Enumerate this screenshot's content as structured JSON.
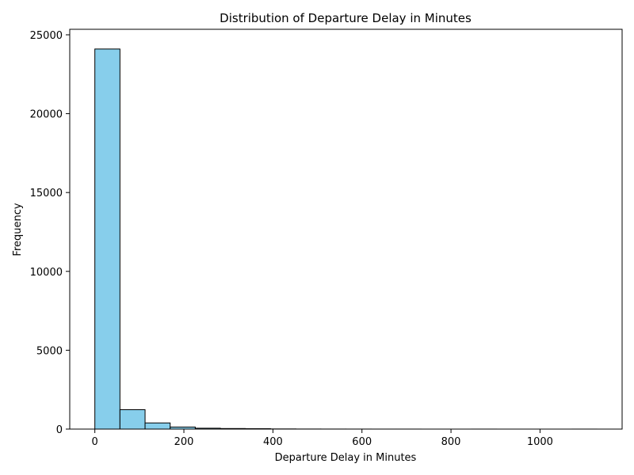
{
  "chart_data": {
    "type": "bar",
    "title": "Distribution of Departure Delay in Minutes",
    "xlabel": "Departure Delay in Minutes",
    "ylabel": "Frequency",
    "xlim": [
      -56.4,
      1184.4
    ],
    "ylim": [
      0,
      25350
    ],
    "x_ticks": [
      "0",
      "200",
      "400",
      "600",
      "800",
      "1000"
    ],
    "y_ticks": [
      "0",
      "5000",
      "10000",
      "15000",
      "20000",
      "25000"
    ],
    "bin_edges": [
      0,
      56.4,
      112.8,
      169.2,
      225.6,
      282.0,
      338.4,
      394.8,
      451.2,
      507.6,
      564.0,
      620.4,
      676.8,
      733.2,
      789.6,
      846.0,
      902.4,
      958.8,
      1015.2,
      1071.6,
      1128.0
    ],
    "values": [
      24100,
      1230,
      390,
      130,
      55,
      35,
      25,
      10,
      5,
      3,
      2,
      1,
      1,
      0,
      0,
      1,
      0,
      0,
      0,
      1
    ],
    "grid": false,
    "colors": {
      "bar_fill": "#87ceeb",
      "bar_edge": "#000000",
      "axis": "#000000"
    }
  }
}
